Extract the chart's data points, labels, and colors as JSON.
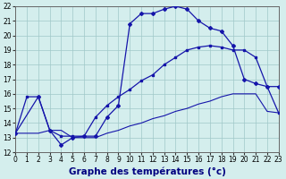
{
  "xlabel": "Graphe des températures (°c)",
  "xlim": [
    0,
    23
  ],
  "ylim": [
    12,
    22
  ],
  "xticks": [
    0,
    1,
    2,
    3,
    4,
    5,
    6,
    7,
    8,
    9,
    10,
    11,
    12,
    13,
    14,
    15,
    16,
    17,
    18,
    19,
    20,
    21,
    22,
    23
  ],
  "yticks": [
    12,
    13,
    14,
    15,
    16,
    17,
    18,
    19,
    20,
    21,
    22
  ],
  "background_color": "#d4eeed",
  "grid_color": "#a0c8c8",
  "line_color": "#1515aa",
  "line1_x": [
    0,
    1,
    2,
    3,
    4,
    5,
    6,
    7,
    8,
    9,
    10,
    11,
    12,
    13,
    14,
    15,
    16,
    17,
    18,
    19,
    20,
    21,
    22,
    23
  ],
  "line1_y": [
    13.3,
    15.8,
    15.8,
    13.5,
    13.1,
    13.1,
    13.1,
    14.4,
    15.2,
    15.8,
    16.3,
    16.9,
    17.3,
    18.0,
    18.5,
    19.0,
    19.2,
    19.3,
    19.2,
    19.0,
    19.0,
    18.5,
    16.5,
    14.7
  ],
  "line2_x": [
    0,
    2,
    3,
    4,
    5,
    6,
    7,
    8,
    9,
    10,
    11,
    12,
    13,
    14,
    15,
    16,
    17,
    18,
    19,
    20,
    21,
    22,
    23
  ],
  "line2_y": [
    13.3,
    15.8,
    13.5,
    12.5,
    13.0,
    13.1,
    13.1,
    14.4,
    15.2,
    20.8,
    21.5,
    21.5,
    21.8,
    22.0,
    21.8,
    21.0,
    20.5,
    20.3,
    19.3,
    17.0,
    16.7,
    16.5,
    16.5
  ],
  "line3_x": [
    0,
    1,
    2,
    3,
    4,
    5,
    6,
    7,
    8,
    9,
    10,
    11,
    12,
    13,
    14,
    15,
    16,
    17,
    18,
    19,
    20,
    21,
    22,
    23
  ],
  "line3_y": [
    13.3,
    13.3,
    13.3,
    13.5,
    13.5,
    13.0,
    13.0,
    13.0,
    13.3,
    13.5,
    13.8,
    14.0,
    14.3,
    14.5,
    14.8,
    15.0,
    15.3,
    15.5,
    15.8,
    16.0,
    16.0,
    16.0,
    14.8,
    14.7
  ],
  "tick_fontsize": 5.5,
  "xlabel_fontsize": 7.5
}
